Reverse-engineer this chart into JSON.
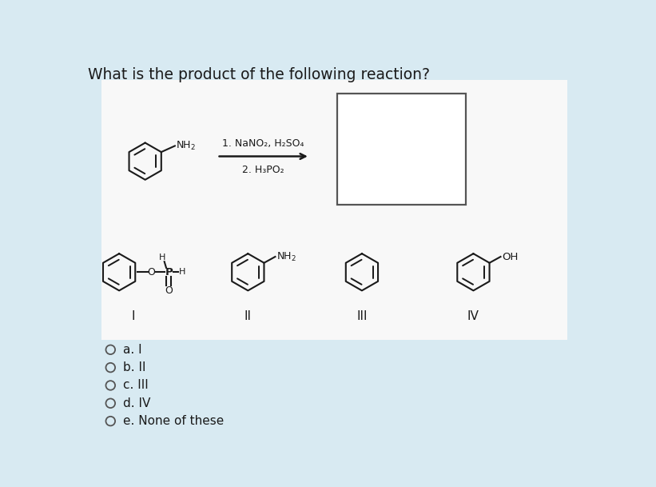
{
  "title": "What is the product of the following reaction?",
  "background_color": "#d8eaf2",
  "panel_background": "#ffffff",
  "question_fontsize": 13.5,
  "reaction_conditions": [
    "1. NaNO₂, H₂SO₄",
    "2. H₃PO₂"
  ],
  "answer_choices": [
    "a. I",
    "b. II",
    "c. III",
    "d. IV",
    "e. None of these"
  ],
  "structure_labels": [
    "I",
    "II",
    "III",
    "IV"
  ],
  "text_color": "#1a1a1a"
}
